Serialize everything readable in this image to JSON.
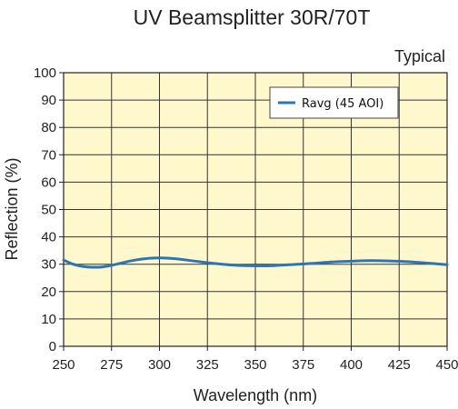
{
  "chart_data": {
    "type": "line",
    "title": "UV Beamsplitter 30R/70T",
    "subtitle": "Typical",
    "xlabel": "Wavelength (nm)",
    "ylabel": "Reflection (%)",
    "xlim": [
      250,
      450
    ],
    "ylim": [
      0,
      100
    ],
    "xticks": [
      "250",
      "275",
      "300",
      "325",
      "350",
      "375",
      "400",
      "425",
      "450"
    ],
    "yticks": [
      "0",
      "10",
      "20",
      "30",
      "40",
      "50",
      "60",
      "70",
      "80",
      "90",
      "100"
    ],
    "grid": true,
    "legend_position": "top-right",
    "plot_background": "#FFF8CC",
    "series": [
      {
        "name": "Ravg (45 AOI)",
        "color": "#2E75B6",
        "x": [
          250,
          255,
          260,
          265,
          270,
          275,
          280,
          285,
          290,
          295,
          300,
          305,
          310,
          320,
          330,
          340,
          350,
          360,
          370,
          380,
          390,
          400,
          410,
          420,
          430,
          440,
          450
        ],
        "y": [
          31.5,
          30.0,
          29.2,
          28.9,
          29.0,
          29.6,
          30.4,
          31.2,
          31.8,
          32.2,
          32.3,
          32.2,
          31.9,
          31.0,
          30.2,
          29.6,
          29.4,
          29.5,
          29.9,
          30.3,
          30.8,
          31.1,
          31.3,
          31.2,
          30.9,
          30.4,
          29.8
        ]
      }
    ]
  }
}
